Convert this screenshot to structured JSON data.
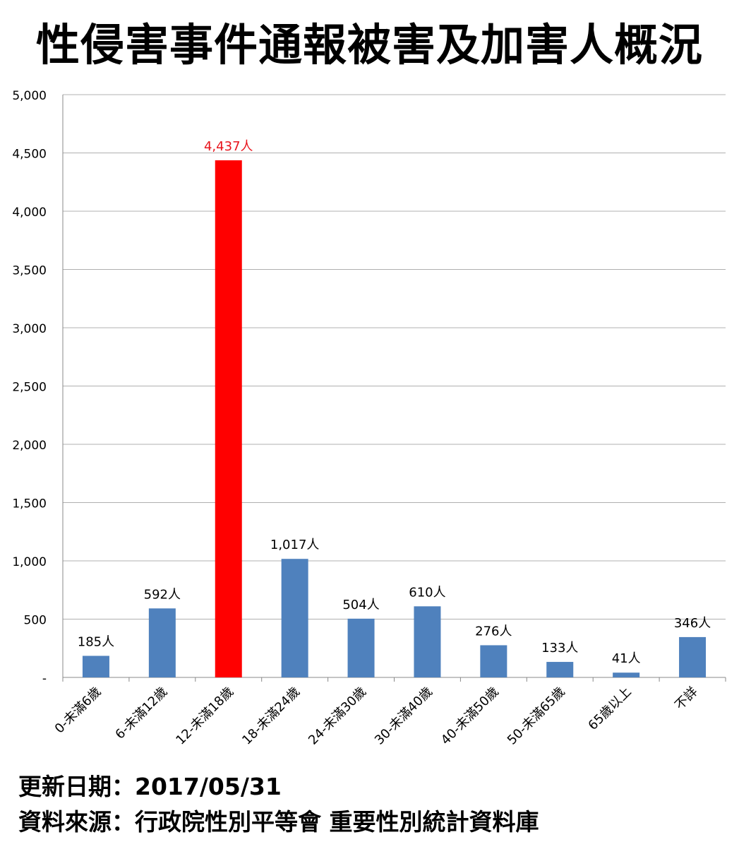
{
  "title": "性侵害事件通報被害及加害人概況",
  "footer": {
    "update": "更新日期：2017/05/31",
    "source": "資料來源：行政院性別平等會 重要性別統計資料庫"
  },
  "chart_data": {
    "type": "bar",
    "title": "性侵害事件通報被害及加害人概況",
    "categories": [
      "0-未滿6歲",
      "6-未滿12歲",
      "12-未滿18歲",
      "18-未滿24歲",
      "24-未滿30歲",
      "30-未滿40歲",
      "40-未滿50歲",
      "50-未滿65歲",
      "65歲以上",
      "不詳"
    ],
    "values": [
      185,
      592,
      4437,
      1017,
      504,
      610,
      276,
      133,
      41,
      346
    ],
    "data_labels": [
      "185人",
      "592人",
      "4,437人",
      "1,017人",
      "504人",
      "610人",
      "276人",
      "133人",
      "41人",
      "346人"
    ],
    "y_ticks": [
      0,
      500,
      1000,
      1500,
      2000,
      2500,
      3000,
      3500,
      4000,
      4500,
      5000
    ],
    "y_tick_labels": [
      "-",
      "500",
      "1,000",
      "1,500",
      "2,000",
      "2,500",
      "3,000",
      "3,500",
      "4,000",
      "4,500",
      "5,000"
    ],
    "ylim": [
      0,
      5000
    ],
    "xlabel": "",
    "ylabel": "",
    "grid": true,
    "legend": "none",
    "colors": {
      "bar": "#4f81bd",
      "highlight": "#ff0000",
      "highlight_label": "#e8141c",
      "grid": "#b0b0b0"
    },
    "highlight_index": 2
  }
}
